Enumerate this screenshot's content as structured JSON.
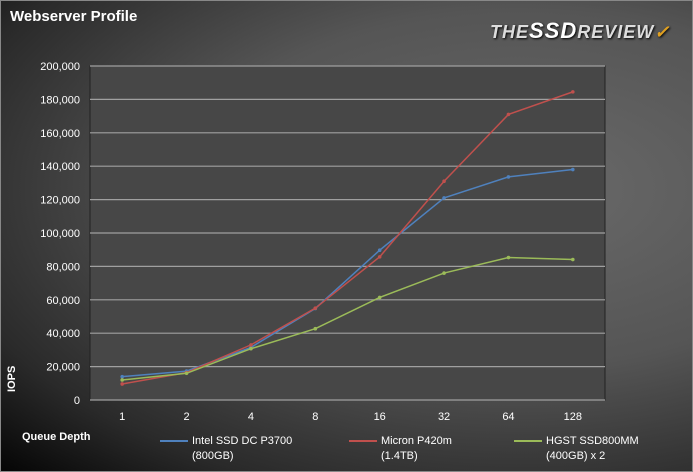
{
  "chart_data": {
    "type": "line",
    "title": "Webserver Profile",
    "xlabel": "Queue Depth",
    "ylabel": "IOPS",
    "categories": [
      "1",
      "2",
      "4",
      "8",
      "16",
      "32",
      "64",
      "128"
    ],
    "ylim": [
      0,
      200000
    ],
    "yticks": [
      "0",
      "20,000",
      "40,000",
      "60,000",
      "80,000",
      "100,000",
      "120,000",
      "140,000",
      "160,000",
      "180,000",
      "200,000"
    ],
    "grid": true,
    "legend_placement": "bottom",
    "series": [
      {
        "name": "Intel SSD DC P3700 (800GB)",
        "line1": "Intel SSD DC P3700",
        "line2": "(800GB)",
        "color": "#4f81bd",
        "values": [
          14000,
          17300,
          31500,
          54800,
          89700,
          121000,
          133600,
          138000
        ]
      },
      {
        "name": "Micron P420m (1.4TB)",
        "line1": "Micron P420m",
        "line2": "(1.4TB)",
        "color": "#c0504d",
        "values": [
          9600,
          16400,
          33000,
          55000,
          85700,
          131000,
          171000,
          184500
        ]
      },
      {
        "name": "HGST SSD800MM (400GB) x 2",
        "line1": "HGST SSD800MM",
        "line2": "(400GB) x 2",
        "color": "#9bbb59",
        "values": [
          12000,
          16000,
          30700,
          42700,
          61400,
          76000,
          85300,
          84100
        ]
      }
    ]
  },
  "logo": {
    "text": "THE SSD REVIEW"
  }
}
